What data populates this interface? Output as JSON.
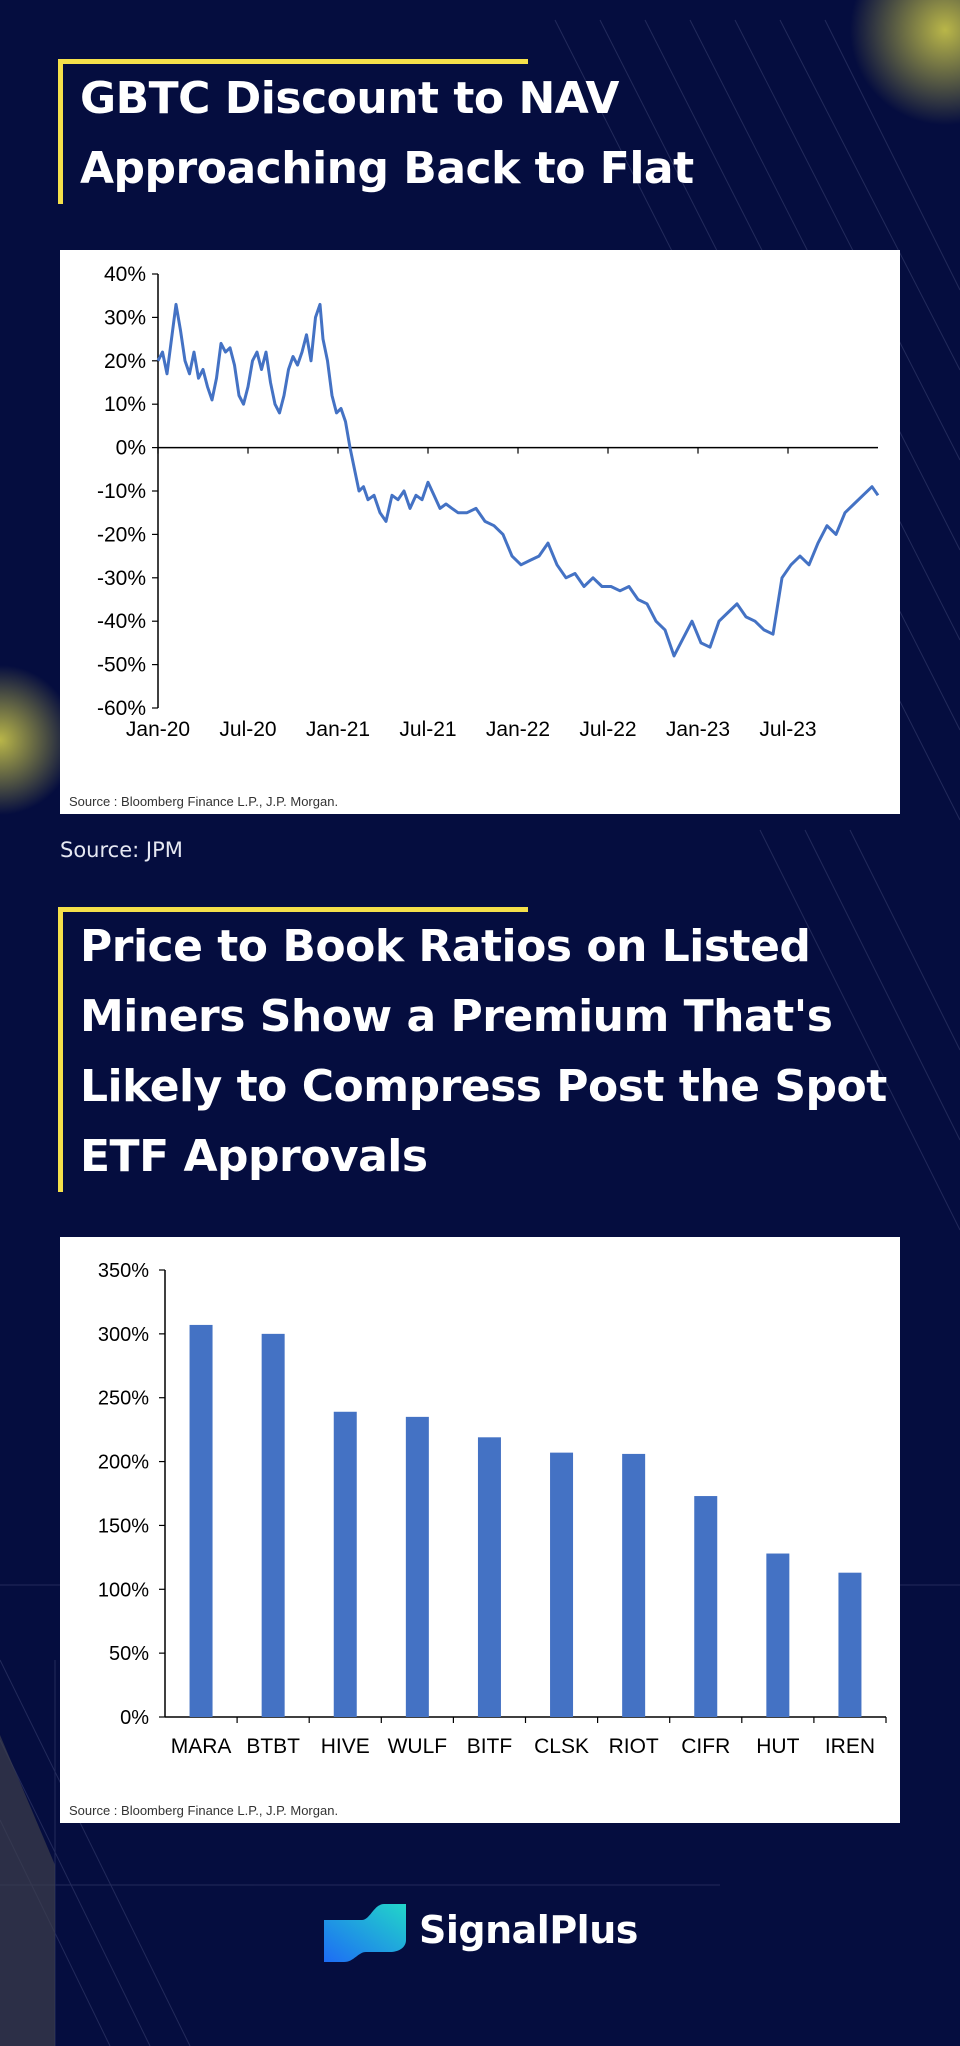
{
  "headings": [
    "GBTC Discount to NAV Approaching Back to Flat",
    "Price to Book Ratios on Listed Miners Show a Premium That's Likely to Compress Post the Spot ETF Approvals"
  ],
  "caption": "Source: JPM",
  "brand": {
    "name": "SignalPlus",
    "logo_icon": "signalplus-logo-icon"
  },
  "colors": {
    "background": "#050d3f",
    "accent": "#f5e04a",
    "series": "#4472c4"
  },
  "chart_data": [
    {
      "type": "line",
      "title": "GBTC Discount to NAV Approaching Back to Flat",
      "xlabel": "",
      "ylabel": "",
      "source": "Source : Bloomberg Finance L.P., J.P. Morgan.",
      "x_ticks": [
        "Jan-20",
        "Jul-20",
        "Jan-21",
        "Jul-21",
        "Jan-22",
        "Jul-22",
        "Jan-23",
        "Jul-23"
      ],
      "y_ticks": [
        "40%",
        "30%",
        "20%",
        "10%",
        "0%",
        "-10%",
        "-20%",
        "-30%",
        "-40%",
        "-50%",
        "-60%"
      ],
      "ylim": [
        -60,
        40
      ],
      "x_unit": "months since Jan-20",
      "xlim": [
        0,
        48
      ],
      "grid": false,
      "series": [
        {
          "name": "GBTC Discount",
          "x": [
            0,
            0.3,
            0.6,
            0.9,
            1.2,
            1.5,
            1.8,
            2.1,
            2.4,
            2.7,
            3.0,
            3.3,
            3.6,
            3.9,
            4.2,
            4.5,
            4.8,
            5.1,
            5.4,
            5.7,
            6.0,
            6.3,
            6.6,
            6.9,
            7.2,
            7.5,
            7.8,
            8.1,
            8.4,
            8.7,
            9.0,
            9.3,
            9.6,
            9.9,
            10.2,
            10.5,
            10.8,
            11.0,
            11.3,
            11.6,
            11.9,
            12.2,
            12.5,
            12.8,
            13.1,
            13.4,
            13.7,
            14.0,
            14.4,
            14.8,
            15.2,
            15.6,
            16.0,
            16.4,
            16.8,
            17.2,
            17.6,
            18.0,
            18.4,
            18.8,
            19.2,
            19.6,
            20.0,
            20.6,
            21.2,
            21.8,
            22.4,
            23.0,
            23.6,
            24.2,
            24.8,
            25.4,
            26.0,
            26.6,
            27.2,
            27.8,
            28.4,
            29.0,
            29.6,
            30.2,
            30.8,
            31.4,
            32.0,
            32.6,
            33.2,
            33.8,
            34.4,
            35.0,
            35.6,
            36.2,
            36.8,
            37.4,
            38.0,
            38.6,
            39.2,
            39.8,
            40.4,
            41.0,
            41.6,
            42.2,
            42.8,
            43.4,
            44.0,
            44.6,
            45.2,
            45.8,
            46.4,
            47.0,
            47.6,
            48.0
          ],
          "y": [
            20,
            22,
            17,
            25,
            33,
            27,
            20,
            17,
            22,
            16,
            18,
            14,
            11,
            16,
            24,
            22,
            23,
            19,
            12,
            10,
            14,
            20,
            22,
            18,
            22,
            15,
            10,
            8,
            12,
            18,
            21,
            19,
            22,
            26,
            20,
            30,
            33,
            25,
            20,
            12,
            8,
            9,
            6,
            0,
            -5,
            -10,
            -9,
            -12,
            -11,
            -15,
            -17,
            -11,
            -12,
            -10,
            -14,
            -11,
            -12,
            -8,
            -11,
            -14,
            -13,
            -14,
            -15,
            -15,
            -14,
            -17,
            -18,
            -20,
            -25,
            -27,
            -26,
            -25,
            -22,
            -27,
            -30,
            -29,
            -32,
            -30,
            -32,
            -32,
            -33,
            -32,
            -35,
            -36,
            -40,
            -42,
            -48,
            -44,
            -40,
            -45,
            -46,
            -40,
            -38,
            -36,
            -39,
            -40,
            -42,
            -43,
            -30,
            -27,
            -25,
            -27,
            -22,
            -18,
            -20,
            -15,
            -13,
            -11,
            -9,
            -11
          ]
        }
      ]
    },
    {
      "type": "bar",
      "title": "Price to Book Ratios on Listed Miners Show a Premium That's Likely to Compress Post the Spot ETF Approvals",
      "xlabel": "",
      "ylabel": "",
      "source": "Source : Bloomberg Finance L.P., J.P. Morgan.",
      "categories": [
        "MARA",
        "BTBT",
        "HIVE",
        "WULF",
        "BITF",
        "CLSK",
        "RIOT",
        "CIFR",
        "HUT",
        "IREN"
      ],
      "values": [
        307,
        300,
        239,
        235,
        219,
        207,
        206,
        173,
        128,
        113
      ],
      "y_ticks": [
        "350%",
        "300%",
        "250%",
        "200%",
        "150%",
        "100%",
        "50%",
        "0%"
      ],
      "ylim": [
        0,
        350
      ],
      "grid": false,
      "series": [
        {
          "name": "Price to Book",
          "values": [
            307,
            300,
            239,
            235,
            219,
            207,
            206,
            173,
            128,
            113
          ]
        }
      ]
    }
  ]
}
